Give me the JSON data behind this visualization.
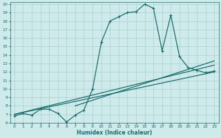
{
  "xlabel": "Humidex (Indice chaleur)",
  "bg_color": "#ceeaea",
  "grid_color": "#a8d0d0",
  "line_color": "#1a6b6b",
  "xlim": [
    -0.5,
    23.5
  ],
  "ylim": [
    6,
    20.2
  ],
  "xticks": [
    0,
    1,
    2,
    3,
    4,
    5,
    6,
    7,
    8,
    9,
    10,
    11,
    12,
    13,
    14,
    15,
    16,
    17,
    18,
    19,
    20,
    21,
    22,
    23
  ],
  "yticks": [
    6,
    7,
    8,
    9,
    10,
    11,
    12,
    13,
    14,
    15,
    16,
    17,
    18,
    19,
    20
  ],
  "main_x": [
    0,
    1,
    2,
    3,
    4,
    5,
    6,
    7,
    8,
    9,
    10,
    11,
    12,
    13,
    14,
    15,
    16,
    17,
    18,
    19,
    20,
    21,
    22,
    23
  ],
  "main_y": [
    6.8,
    7.1,
    6.9,
    7.6,
    7.6,
    7.1,
    6.1,
    6.9,
    7.5,
    10,
    15.5,
    18,
    18.5,
    19,
    19.1,
    20,
    19.5,
    14.5,
    18.7,
    13.8,
    12.5,
    12.2,
    11.9,
    12.1
  ],
  "line2_x": [
    0,
    23
  ],
  "line2_y": [
    7.0,
    12.8
  ],
  "line3_x": [
    0,
    23
  ],
  "line3_y": [
    7.0,
    12.0
  ],
  "line4_x": [
    7,
    23
  ],
  "line4_y": [
    8.0,
    13.3
  ]
}
